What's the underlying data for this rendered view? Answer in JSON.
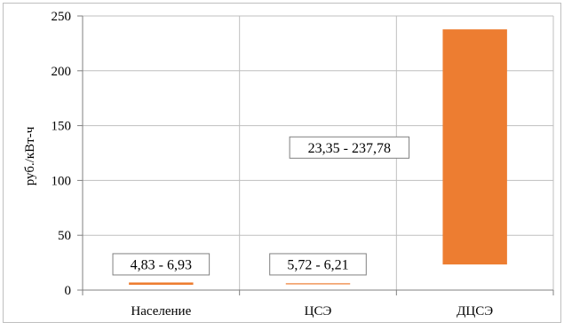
{
  "chart_data": {
    "type": "bar",
    "subtype": "floating-range",
    "title": "",
    "xlabel": "",
    "ylabel": "руб./кВт-ч",
    "ylim": [
      0,
      250
    ],
    "yticks": [
      0,
      50,
      100,
      150,
      200,
      250
    ],
    "grid": true,
    "categories": [
      "Население",
      "ЦСЭ",
      "ДЦСЭ"
    ],
    "series": [
      {
        "ranges": [
          [
            4.83,
            6.93
          ],
          [
            5.72,
            6.21
          ],
          [
            23.35,
            237.78
          ]
        ],
        "color": "#ED7D31"
      }
    ],
    "data_labels": [
      "4,83 - 6,93",
      "5,72 - 6,21",
      "23,35 - 237,78"
    ]
  }
}
